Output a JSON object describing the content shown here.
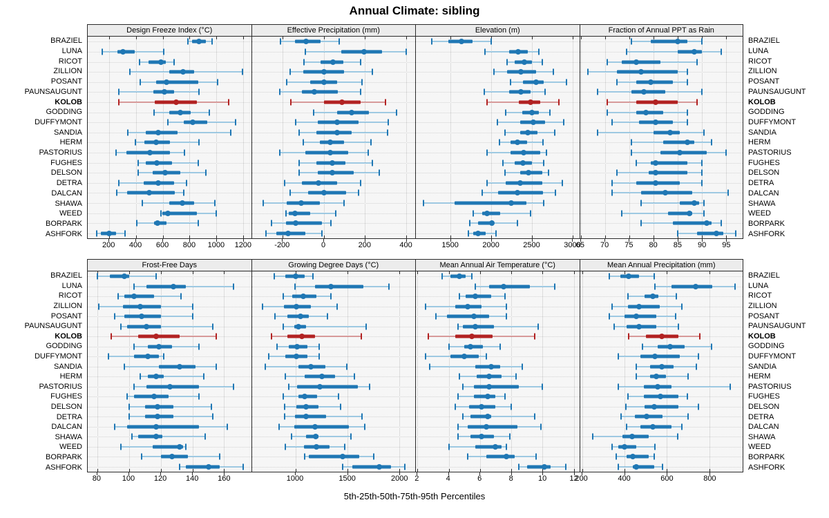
{
  "title": "Annual Climate: sibling",
  "caption": "5th-25th-50th-75th-95th Percentiles",
  "highlight_station": "KOLOB",
  "colors": {
    "blue": "#1f77b4",
    "blue_light": "#9ec9e2",
    "red": "#b22222",
    "red_light": "#d79a9a",
    "strip_bg": "#ececec",
    "panel_bg": "#f6f6f6",
    "grid_line": "#c4c4c4",
    "row_line": "#d3d3d3",
    "border": "#2a2a2a"
  },
  "stations": [
    "BRAZIEL",
    "LUNA",
    "RICOT",
    "ZILLION",
    "POSANT",
    "PAUNSAUGUNT",
    "KOLOB",
    "GODDING",
    "DUFFYMONT",
    "SANDIA",
    "HERM",
    "PASTORIUS",
    "FUGHES",
    "DELSON",
    "DETRA",
    "DALCAN",
    "SHAWA",
    "WEED",
    "BORPARK",
    "ASHFORK"
  ],
  "chart_data": [
    {
      "type": "percentile-dotplot",
      "id": "design-freeze-index",
      "grid_row": 0,
      "title": "Design Freeze Index (°C)",
      "ticks": [
        200,
        400,
        600,
        800,
        1000,
        1200
      ],
      "domain": [
        40,
        1260
      ],
      "percentiles": [
        "p5",
        "p25",
        "p50",
        "p75",
        "p95"
      ],
      "values": [
        [
          790,
          820,
          870,
          920,
          970
        ],
        [
          150,
          260,
          305,
          390,
          610
        ],
        [
          425,
          495,
          585,
          625,
          685
        ],
        [
          355,
          650,
          750,
          835,
          1195
        ],
        [
          430,
          550,
          630,
          865,
          1010
        ],
        [
          270,
          530,
          615,
          685,
          870
        ],
        [
          270,
          540,
          700,
          855,
          1090
        ],
        [
          535,
          650,
          730,
          810,
          950
        ],
        [
          640,
          755,
          825,
          930,
          1145
        ],
        [
          340,
          475,
          565,
          710,
          1110
        ],
        [
          395,
          465,
          550,
          655,
          870
        ],
        [
          250,
          330,
          505,
          655,
          760
        ],
        [
          415,
          475,
          555,
          670,
          865
        ],
        [
          415,
          525,
          620,
          730,
          920
        ],
        [
          270,
          460,
          565,
          685,
          780
        ],
        [
          255,
          335,
          500,
          690,
          755
        ],
        [
          450,
          650,
          745,
          835,
          990
        ],
        [
          585,
          595,
          640,
          855,
          1000
        ],
        [
          405,
          535,
          560,
          630,
          865
        ],
        [
          105,
          140,
          200,
          250,
          320
        ]
      ]
    },
    {
      "type": "percentile-dotplot",
      "id": "effective-precipitation",
      "grid_row": 0,
      "title": "Effective Precipitation (mm)",
      "ticks": [
        -200,
        0,
        200,
        400
      ],
      "domain": [
        -350,
        445
      ],
      "percentiles": [
        "p5",
        "p25",
        "p50",
        "p75",
        "p95"
      ],
      "values": [
        [
          -210,
          -140,
          -85,
          -15,
          75
        ],
        [
          -90,
          85,
          195,
          285,
          400
        ],
        [
          -95,
          -15,
          45,
          95,
          180
        ],
        [
          -165,
          -100,
          0,
          100,
          235
        ],
        [
          -180,
          -65,
          0,
          65,
          185
        ],
        [
          -215,
          -105,
          -45,
          70,
          180
        ],
        [
          -160,
          0,
          90,
          180,
          300
        ],
        [
          -50,
          65,
          135,
          220,
          355
        ],
        [
          -135,
          -30,
          65,
          170,
          315
        ],
        [
          -120,
          -35,
          65,
          135,
          310
        ],
        [
          -100,
          -20,
          30,
          100,
          230
        ],
        [
          -215,
          -90,
          30,
          120,
          215
        ],
        [
          -120,
          -35,
          40,
          105,
          235
        ],
        [
          -120,
          -30,
          40,
          145,
          270
        ],
        [
          -190,
          -105,
          -25,
          65,
          180
        ],
        [
          -165,
          -75,
          0,
          110,
          170
        ],
        [
          -295,
          -180,
          -110,
          -20,
          100
        ],
        [
          -185,
          -170,
          -140,
          -65,
          60
        ],
        [
          -255,
          -185,
          -135,
          -10,
          35
        ],
        [
          -280,
          -230,
          -175,
          -90,
          -10
        ]
      ]
    },
    {
      "type": "percentile-dotplot",
      "id": "elevation",
      "grid_row": 0,
      "title": "Elevation (m)",
      "ticks": [
        1500,
        2000,
        2500,
        3000
      ],
      "domain": [
        1070,
        3085
      ],
      "percentiles": [
        "p5",
        "p25",
        "p50",
        "p75",
        "p95"
      ],
      "values": [
        [
          1270,
          1470,
          1630,
          1765,
          2000
        ],
        [
          1920,
          2220,
          2335,
          2450,
          2585
        ],
        [
          2195,
          2290,
          2405,
          2500,
          2625
        ],
        [
          2035,
          2195,
          2365,
          2555,
          2765
        ],
        [
          2240,
          2390,
          2555,
          2650,
          2930
        ],
        [
          1910,
          2220,
          2365,
          2485,
          2665
        ],
        [
          1945,
          2340,
          2485,
          2600,
          2835
        ],
        [
          2180,
          2380,
          2505,
          2585,
          2720
        ],
        [
          2075,
          2355,
          2520,
          2665,
          2890
        ],
        [
          2170,
          2360,
          2450,
          2570,
          2780
        ],
        [
          2105,
          2235,
          2325,
          2445,
          2640
        ],
        [
          1945,
          2240,
          2395,
          2600,
          2680
        ],
        [
          2140,
          2285,
          2390,
          2500,
          2645
        ],
        [
          2170,
          2360,
          2460,
          2625,
          2710
        ],
        [
          1950,
          2180,
          2355,
          2630,
          2880
        ],
        [
          1890,
          2085,
          2325,
          2640,
          2790
        ],
        [
          1165,
          1545,
          2250,
          2435,
          2645
        ],
        [
          1780,
          1890,
          1945,
          2110,
          2485
        ],
        [
          1735,
          1835,
          2010,
          2035,
          2325
        ],
        [
          1720,
          1780,
          1840,
          1930,
          2060
        ]
      ]
    },
    {
      "type": "percentile-dotplot",
      "id": "fraction-ppt-rain",
      "grid_row": 0,
      "title": "Fraction of Annual PPT as Rain",
      "ticks": [
        65,
        70,
        75,
        80,
        85,
        90,
        95
      ],
      "domain": [
        64.8,
        98.5
      ],
      "percentiles": [
        "p5",
        "p25",
        "p50",
        "p75",
        "p95"
      ],
      "values": [
        [
          75.5,
          79.5,
          85,
          87,
          90
        ],
        [
          74.5,
          85,
          88.5,
          90,
          94
        ],
        [
          70.5,
          73.5,
          76.5,
          81.5,
          89
        ],
        [
          66.5,
          72.5,
          77.5,
          85,
          87
        ],
        [
          72.5,
          76.5,
          79.5,
          84,
          87
        ],
        [
          68.5,
          75.5,
          78,
          82.5,
          90
        ],
        [
          70.5,
          76.5,
          80.5,
          85,
          89
        ],
        [
          70.5,
          76.5,
          78.5,
          82,
          87
        ],
        [
          71.5,
          77,
          80.5,
          84,
          87
        ],
        [
          68.5,
          80,
          83.5,
          85.5,
          90.5
        ],
        [
          75.5,
          82,
          87,
          88.5,
          92
        ],
        [
          75.5,
          81.5,
          85.5,
          91,
          95
        ],
        [
          76.5,
          79.5,
          80.5,
          87,
          90
        ],
        [
          72.5,
          79,
          80.5,
          87,
          90
        ],
        [
          71.5,
          76.5,
          80.5,
          85.5,
          90
        ],
        [
          71.5,
          77.5,
          82.5,
          88,
          95.5
        ],
        [
          77.5,
          85.5,
          88.5,
          89.5,
          90.5
        ],
        [
          73.5,
          83,
          87.5,
          88,
          90.5
        ],
        [
          77.5,
          84,
          91,
          92,
          94
        ],
        [
          85,
          89,
          93,
          94.5,
          97
        ]
      ]
    },
    {
      "type": "percentile-dotplot",
      "id": "frost-free-days",
      "grid_row": 1,
      "title": "Frost-Free Days",
      "ticks": [
        80,
        100,
        120,
        140,
        160
      ],
      "domain": [
        74,
        177
      ],
      "percentiles": [
        "p5",
        "p25",
        "p50",
        "p75",
        "p95"
      ],
      "values": [
        [
          80,
          88,
          97,
          100,
          117
        ],
        [
          103,
          111,
          128,
          136,
          166
        ],
        [
          93,
          97,
          103,
          116,
          133
        ],
        [
          81,
          96,
          107,
          120,
          140
        ],
        [
          91,
          97,
          108,
          120,
          140
        ],
        [
          95,
          99,
          111,
          120,
          153
        ],
        [
          89,
          106,
          117,
          132,
          155
        ],
        [
          103,
          112,
          119,
          127,
          144
        ],
        [
          87,
          103,
          112,
          119,
          122
        ],
        [
          97,
          119,
          132,
          142,
          155
        ],
        [
          107,
          112,
          117,
          122,
          147
        ],
        [
          103,
          111,
          126,
          144,
          166
        ],
        [
          99,
          103,
          116,
          125,
          144
        ],
        [
          100,
          110,
          118,
          128,
          152
        ],
        [
          100,
          110,
          118,
          128,
          153
        ],
        [
          91,
          99,
          117,
          144,
          162
        ],
        [
          102,
          106,
          117,
          121,
          148
        ],
        [
          95,
          115,
          132,
          134,
          136
        ],
        [
          108,
          120,
          127,
          137,
          157
        ],
        [
          132,
          136,
          150,
          157,
          172
        ]
      ]
    },
    {
      "type": "percentile-dotplot",
      "id": "growing-degree-days",
      "grid_row": 1,
      "title": "Growing Degree Days (°C)",
      "ticks": [
        1000,
        1500,
        2000
      ],
      "domain": [
        580,
        2150
      ],
      "percentiles": [
        "p5",
        "p25",
        "p50",
        "p75",
        "p95"
      ],
      "values": [
        [
          795,
          900,
          1000,
          1090,
          1165
        ],
        [
          995,
          1190,
          1340,
          1655,
          1895
        ],
        [
          885,
          970,
          1075,
          1200,
          1340
        ],
        [
          680,
          890,
          1005,
          1145,
          1400
        ],
        [
          805,
          925,
          1050,
          1130,
          1310
        ],
        [
          885,
          985,
          1030,
          1100,
          1680
        ],
        [
          770,
          925,
          1060,
          1185,
          1630
        ],
        [
          820,
          935,
          1015,
          1115,
          1230
        ],
        [
          740,
          905,
          1010,
          1115,
          1230
        ],
        [
          710,
          1025,
          1145,
          1285,
          1495
        ],
        [
          900,
          1085,
          1255,
          1380,
          1565
        ],
        [
          935,
          1015,
          1235,
          1600,
          1710
        ],
        [
          880,
          1025,
          1090,
          1205,
          1415
        ],
        [
          895,
          1010,
          1100,
          1220,
          1435
        ],
        [
          895,
          995,
          1100,
          1295,
          1640
        ],
        [
          840,
          985,
          1190,
          1515,
          1665
        ],
        [
          960,
          1100,
          1195,
          1220,
          1535
        ],
        [
          905,
          1080,
          1200,
          1330,
          1470
        ],
        [
          1090,
          1125,
          1450,
          1615,
          1755
        ],
        [
          1455,
          1545,
          1805,
          1915,
          2050
        ]
      ]
    },
    {
      "type": "percentile-dotplot",
      "id": "mean-annual-air-temperature",
      "grid_row": 1,
      "title": "Mean Annual Air Temperature (°C)",
      "ticks": [
        2,
        4,
        6,
        8,
        10,
        12
      ],
      "domain": [
        1.9,
        12.35
      ],
      "percentiles": [
        "p5",
        "p25",
        "p50",
        "p75",
        "p95"
      ],
      "values": [
        [
          3.6,
          4.1,
          4.7,
          5.1,
          5.5
        ],
        [
          5.7,
          6.6,
          7.5,
          9.2,
          10.8
        ],
        [
          4.7,
          5.1,
          5.7,
          6.7,
          7.6
        ],
        [
          2.5,
          4.4,
          5.2,
          6.1,
          7.7
        ],
        [
          3.2,
          3.9,
          5.6,
          6.6,
          7.7
        ],
        [
          4.6,
          4.9,
          5.7,
          6.9,
          9.7
        ],
        [
          2.7,
          4.4,
          5.5,
          6.8,
          9.5
        ],
        [
          4.0,
          5.0,
          5.4,
          6.2,
          7.3
        ],
        [
          2.5,
          4.1,
          5.0,
          5.9,
          6.4
        ],
        [
          2.8,
          5.7,
          6.7,
          7.3,
          8.7
        ],
        [
          4.7,
          5.8,
          6.6,
          7.4,
          8.3
        ],
        [
          4.9,
          5.6,
          6.6,
          8.5,
          10.0
        ],
        [
          4.6,
          5.6,
          6.5,
          7.0,
          7.6
        ],
        [
          4.4,
          5.3,
          6.1,
          7.0,
          8.0
        ],
        [
          4.9,
          5.4,
          6.5,
          6.7,
          9.5
        ],
        [
          4.6,
          5.2,
          6.4,
          8.4,
          9.9
        ],
        [
          4.6,
          5.4,
          6.1,
          6.9,
          7.9
        ],
        [
          4.0,
          5.7,
          7.0,
          7.4,
          7.7
        ],
        [
          5.2,
          6.4,
          7.7,
          8.2,
          9.6
        ],
        [
          8.5,
          9.0,
          10.1,
          10.5,
          11.5
        ]
      ]
    },
    {
      "type": "percentile-dotplot",
      "id": "mean-annual-precipitation",
      "grid_row": 1,
      "title": "Mean Annual Precipitation (mm)",
      "ticks": [
        200,
        400,
        600,
        800
      ],
      "domain": [
        190,
        957
      ],
      "percentiles": [
        "p5",
        "p25",
        "p50",
        "p75",
        "p95"
      ],
      "values": [
        [
          330,
          380,
          420,
          470,
          540
        ],
        [
          545,
          620,
          735,
          815,
          920
        ],
        [
          415,
          495,
          535,
          560,
          645
        ],
        [
          340,
          415,
          470,
          565,
          670
        ],
        [
          330,
          400,
          455,
          550,
          640
        ],
        [
          350,
          410,
          470,
          550,
          655
        ],
        [
          420,
          500,
          575,
          655,
          755
        ],
        [
          485,
          555,
          615,
          685,
          810
        ],
        [
          370,
          475,
          545,
          660,
          750
        ],
        [
          455,
          520,
          575,
          630,
          740
        ],
        [
          455,
          520,
          550,
          595,
          700
        ],
        [
          370,
          490,
          555,
          620,
          900
        ],
        [
          415,
          490,
          570,
          655,
          695
        ],
        [
          405,
          495,
          540,
          655,
          750
        ],
        [
          385,
          450,
          505,
          580,
          700
        ],
        [
          410,
          475,
          535,
          620,
          670
        ],
        [
          250,
          390,
          435,
          515,
          650
        ],
        [
          340,
          370,
          400,
          455,
          545
        ],
        [
          360,
          410,
          440,
          515,
          540
        ],
        [
          370,
          440,
          455,
          540,
          580
        ]
      ]
    }
  ]
}
